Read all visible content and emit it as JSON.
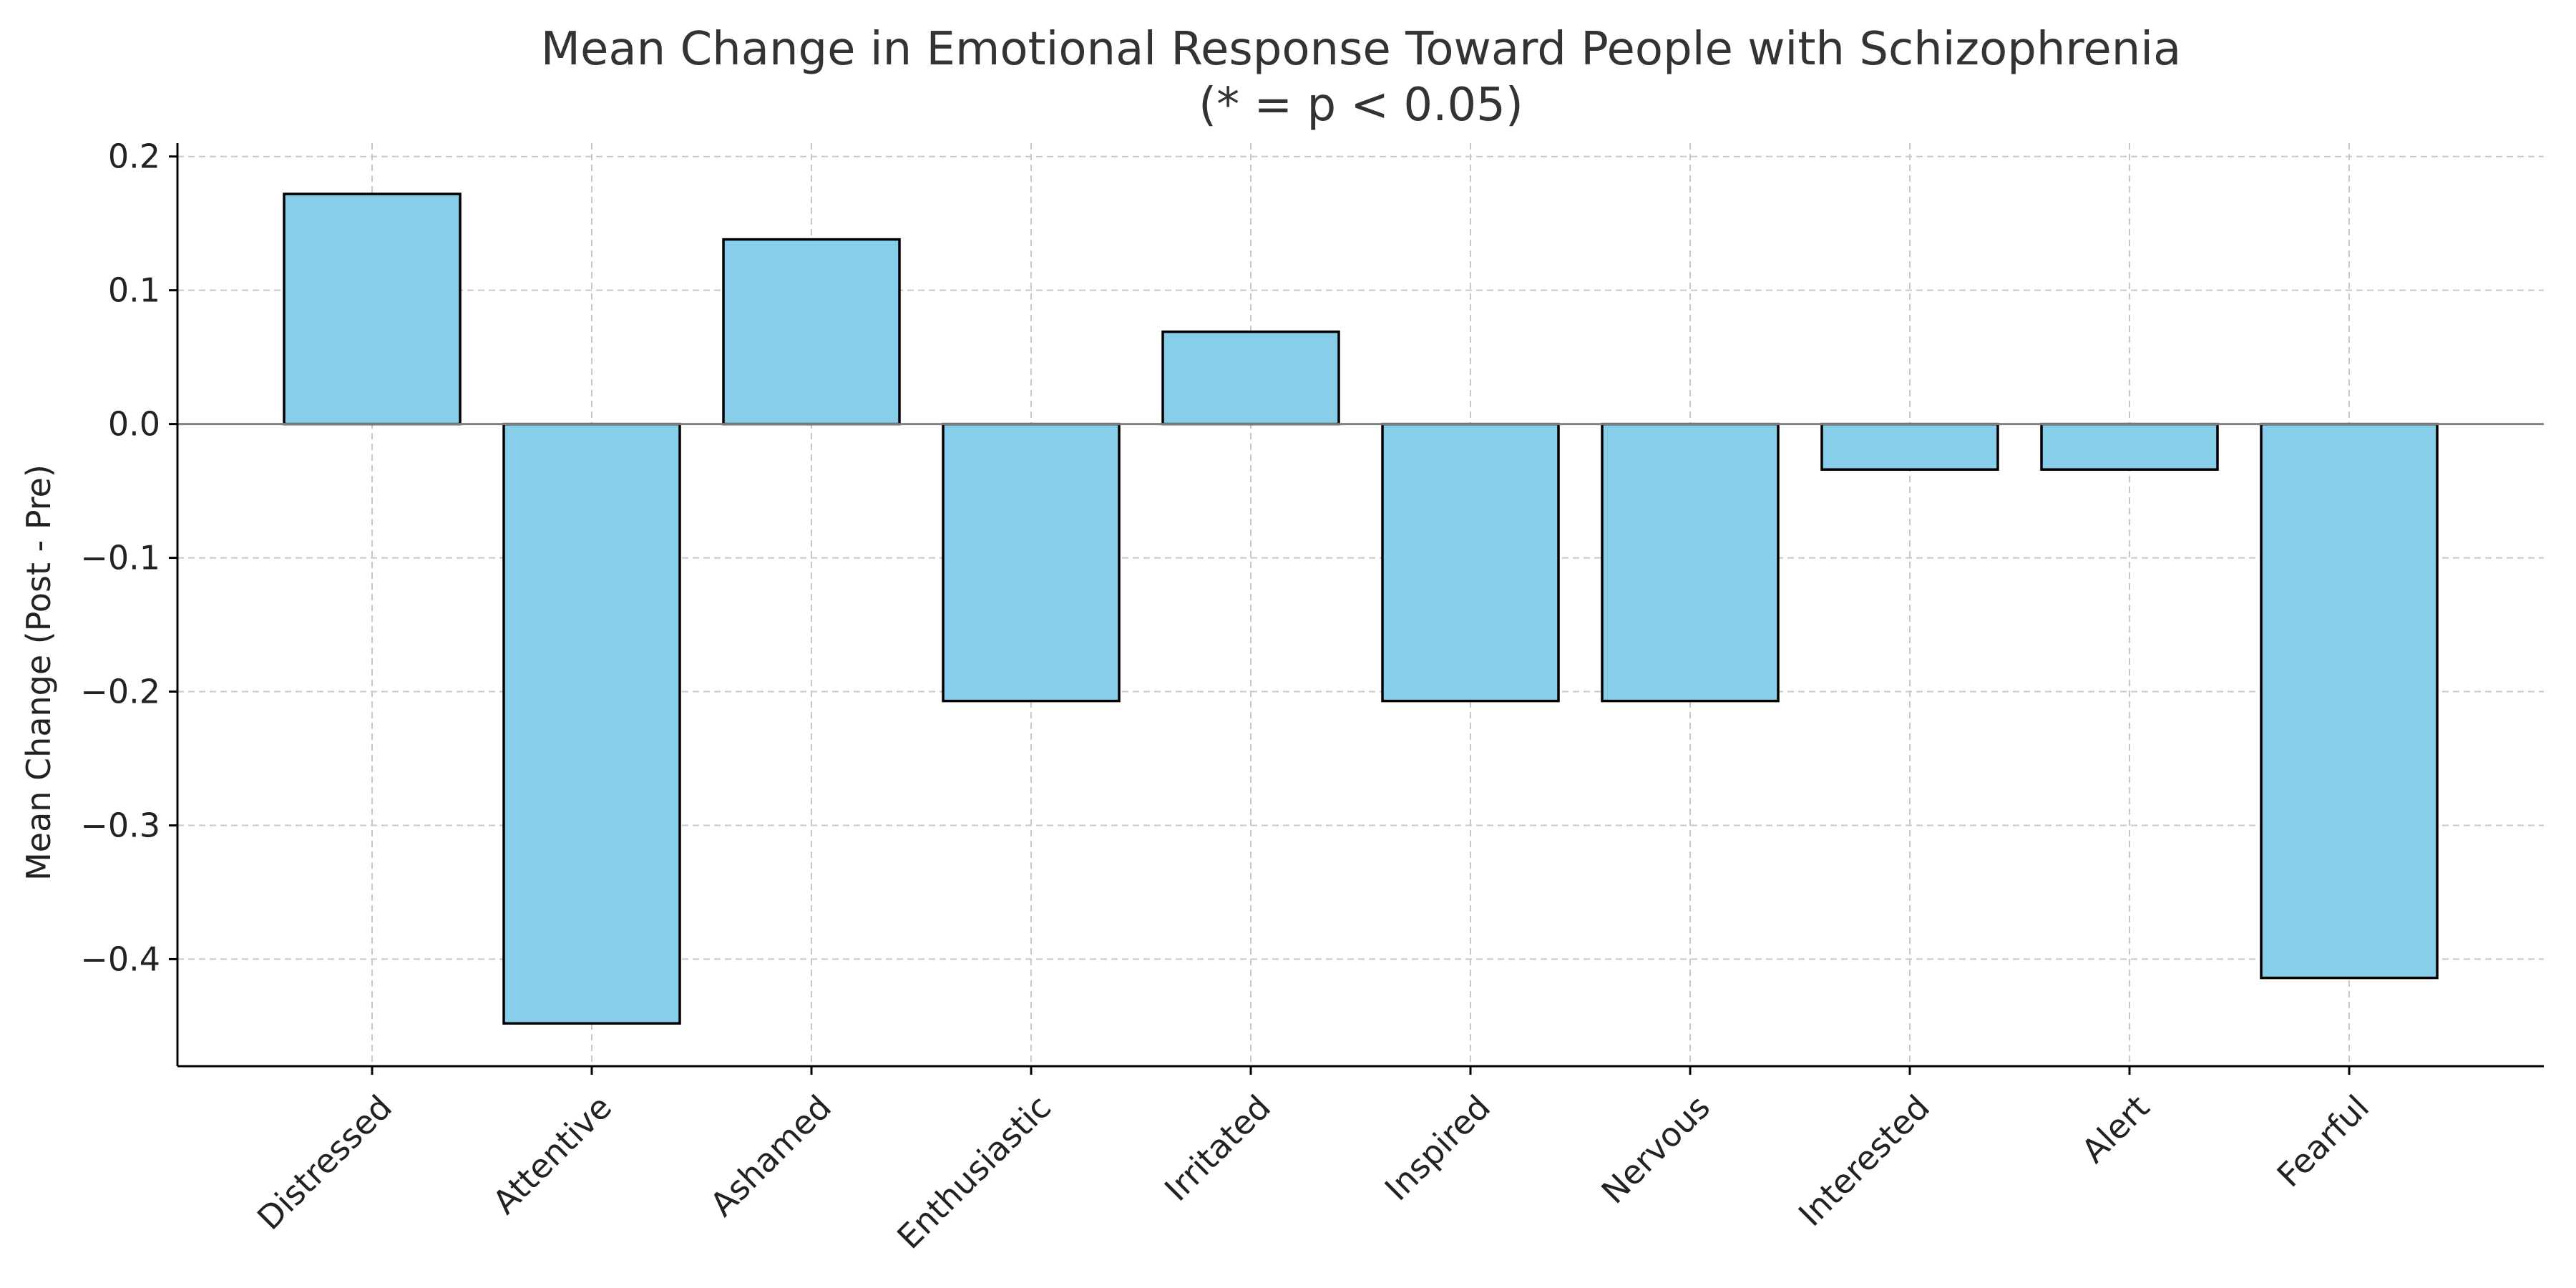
{
  "chart_data": {
    "type": "bar",
    "title": "Mean Change in Emotional Response Toward People with Schizophrenia",
    "subtitle": "(* = p < 0.05)",
    "xlabel": "",
    "ylabel": "Mean Change (Post - Pre)",
    "categories": [
      "Distressed",
      "Attentive",
      "Ashamed",
      "Enthusiastic",
      "Irritated",
      "Inspired",
      "Nervous",
      "Interested",
      "Alert",
      "Fearful"
    ],
    "values": [
      0.172,
      -0.448,
      0.138,
      -0.207,
      0.069,
      -0.207,
      -0.207,
      -0.034,
      -0.034,
      -0.414
    ],
    "ylim": [
      -0.48,
      0.21
    ],
    "yticks": [
      0.2,
      0.1,
      0.0,
      -0.1,
      -0.2,
      -0.3,
      -0.4
    ],
    "ytick_labels": [
      "0.2",
      "0.1",
      "0.0",
      "−0.1",
      "−0.2",
      "−0.3",
      "−0.4"
    ],
    "grid": true,
    "bar_color": "#87CEEB",
    "bar_edge_color": "#000000",
    "zero_line_color": "#808080"
  }
}
